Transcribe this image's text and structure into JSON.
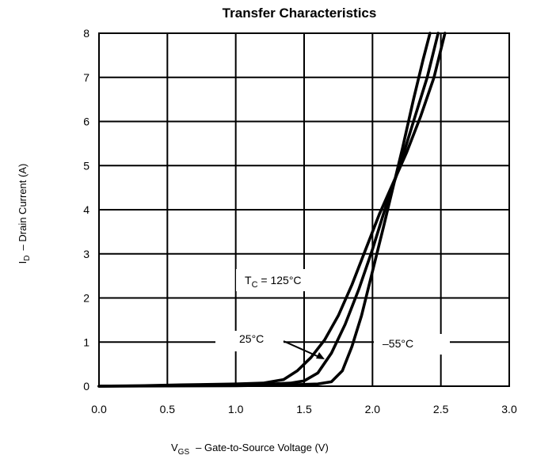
{
  "chart_data": {
    "type": "line",
    "title": "Transfer Characteristics",
    "xlabel": {
      "main": "V",
      "sub": "GS",
      "rest": "–  Gate-to-Source Voltage (V)"
    },
    "ylabel": {
      "main": "I",
      "sub": "D",
      "rest": "–  Drain Current (A)"
    },
    "xlim": [
      0.0,
      3.0
    ],
    "ylim": [
      0,
      8
    ],
    "x_ticks": [
      "0.0",
      "0.5",
      "1.0",
      "1.5",
      "2.0",
      "2.5",
      "3.0"
    ],
    "y_ticks": [
      "0",
      "1",
      "2",
      "3",
      "4",
      "5",
      "6",
      "7",
      "8"
    ],
    "grid": true,
    "series": [
      {
        "name": "125°C",
        "points": [
          [
            0.0,
            0.0
          ],
          [
            0.3,
            0.01
          ],
          [
            0.6,
            0.03
          ],
          [
            1.0,
            0.05
          ],
          [
            1.2,
            0.07
          ],
          [
            1.35,
            0.15
          ],
          [
            1.45,
            0.35
          ],
          [
            1.55,
            0.65
          ],
          [
            1.65,
            1.05
          ],
          [
            1.75,
            1.6
          ],
          [
            1.85,
            2.3
          ],
          [
            1.95,
            3.1
          ],
          [
            2.05,
            3.9
          ],
          [
            2.15,
            4.6
          ],
          [
            2.25,
            5.3
          ],
          [
            2.35,
            6.1
          ],
          [
            2.45,
            7.0
          ],
          [
            2.53,
            8.0
          ]
        ]
      },
      {
        "name": "25°C",
        "points": [
          [
            0.0,
            0.0
          ],
          [
            0.3,
            0.005
          ],
          [
            0.8,
            0.02
          ],
          [
            1.2,
            0.04
          ],
          [
            1.4,
            0.07
          ],
          [
            1.5,
            0.12
          ],
          [
            1.6,
            0.3
          ],
          [
            1.7,
            0.75
          ],
          [
            1.8,
            1.4
          ],
          [
            1.9,
            2.2
          ],
          [
            2.0,
            3.1
          ],
          [
            2.1,
            4.1
          ],
          [
            2.2,
            5.0
          ],
          [
            2.3,
            6.0
          ],
          [
            2.4,
            7.0
          ],
          [
            2.48,
            8.0
          ]
        ]
      },
      {
        "name": "-55°C",
        "points": [
          [
            0.0,
            0.0
          ],
          [
            0.5,
            0.005
          ],
          [
            1.0,
            0.01
          ],
          [
            1.4,
            0.03
          ],
          [
            1.6,
            0.05
          ],
          [
            1.7,
            0.1
          ],
          [
            1.78,
            0.35
          ],
          [
            1.85,
            0.9
          ],
          [
            1.92,
            1.6
          ],
          [
            2.0,
            2.6
          ],
          [
            2.08,
            3.6
          ],
          [
            2.15,
            4.5
          ],
          [
            2.22,
            5.4
          ],
          [
            2.3,
            6.5
          ],
          [
            2.37,
            7.4
          ],
          [
            2.42,
            8.0
          ]
        ]
      }
    ],
    "annotations": [
      {
        "id": "tc",
        "main": "T",
        "sub": "C",
        "rest": " = 125°C"
      },
      {
        "id": "t25",
        "main": "25°C"
      },
      {
        "id": "tm55",
        "main": "–55°C"
      }
    ]
  }
}
